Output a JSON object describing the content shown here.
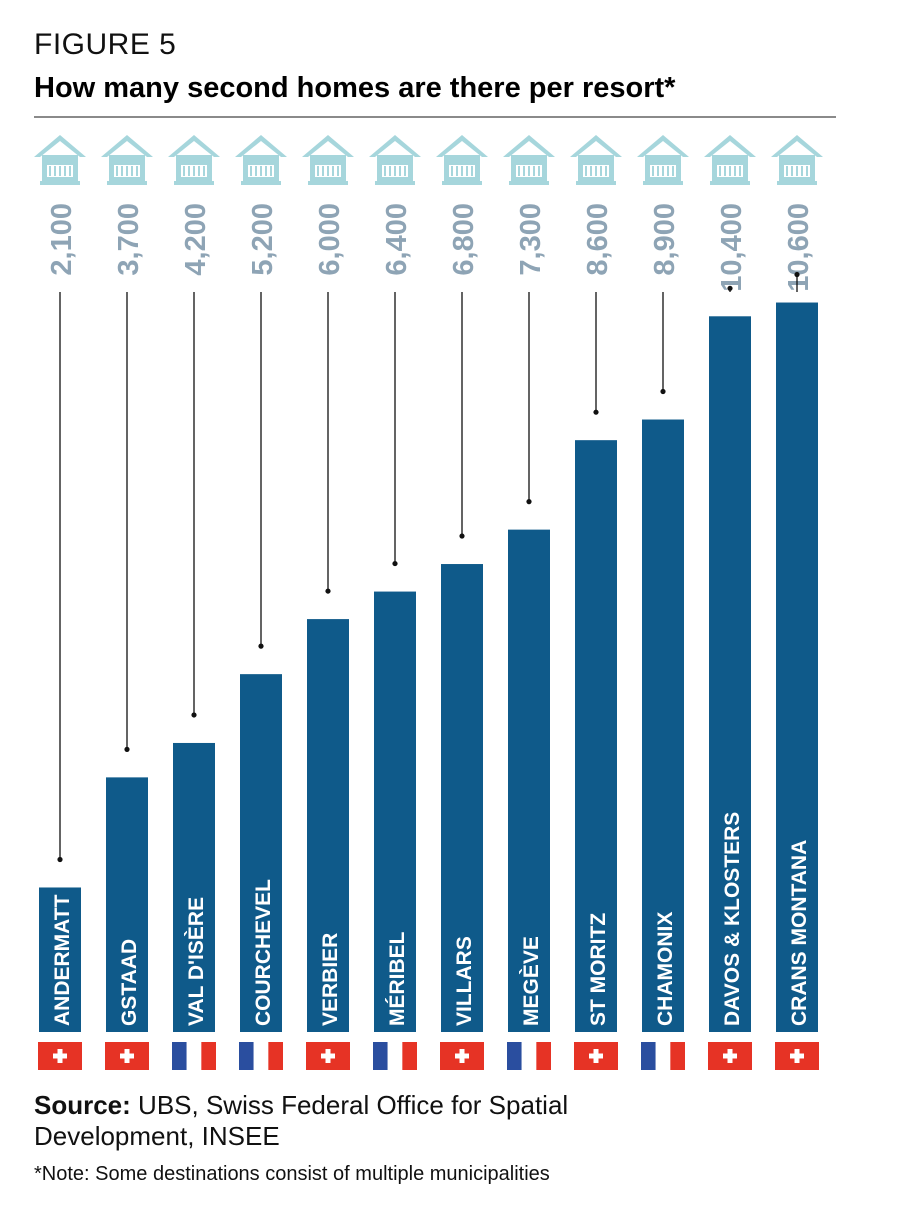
{
  "header": {
    "figure_label": "FIGURE 5",
    "title": "How many second homes are there per resort*"
  },
  "footer": {
    "source_label": "Source:",
    "source_text": "UBS, Swiss Federal Office for Spatial Development, INSEE",
    "note": "*Note: Some destinations consist of multiple municipalities"
  },
  "colors": {
    "bar": "#0f5a8a",
    "value_label": "#8ea4b5",
    "house_icon": "#a6d6dc",
    "swiss_red": "#e63325",
    "french_blue": "#2a4e9f",
    "french_red": "#e63325",
    "rule": "#8a8a8a"
  },
  "chart_data": {
    "type": "bar",
    "title": "How many second homes are there per resort*",
    "xlabel": "",
    "ylabel": "",
    "ylim": [
      0,
      11000
    ],
    "grid": false,
    "legend": "none",
    "categories": [
      "ANDERMATT",
      "GSTAAD",
      "VAL D'ISÈRE",
      "COURCHEVEL",
      "VERBIER",
      "MÉRIBEL",
      "VILLARS",
      "MEGÈVE",
      "ST MORITZ",
      "CHAMONIX",
      "DAVOS & KLOSTERS",
      "CRANS MONTANA"
    ],
    "values": [
      2100,
      3700,
      4200,
      5200,
      6000,
      6400,
      6800,
      7300,
      8600,
      8900,
      10400,
      10600
    ],
    "value_labels": [
      "2,100",
      "3,700",
      "4,200",
      "5,200",
      "6,000",
      "6,400",
      "6,800",
      "7,300",
      "8,600",
      "8,900",
      "10,400",
      "10,600"
    ],
    "flags": [
      "swiss-flag-icon",
      "swiss-flag-icon",
      "french-flag-icon",
      "french-flag-icon",
      "swiss-flag-icon",
      "french-flag-icon",
      "swiss-flag-icon",
      "french-flag-icon",
      "swiss-flag-icon",
      "french-flag-icon",
      "swiss-flag-icon",
      "swiss-flag-icon"
    ],
    "icons": "house-icon"
  }
}
